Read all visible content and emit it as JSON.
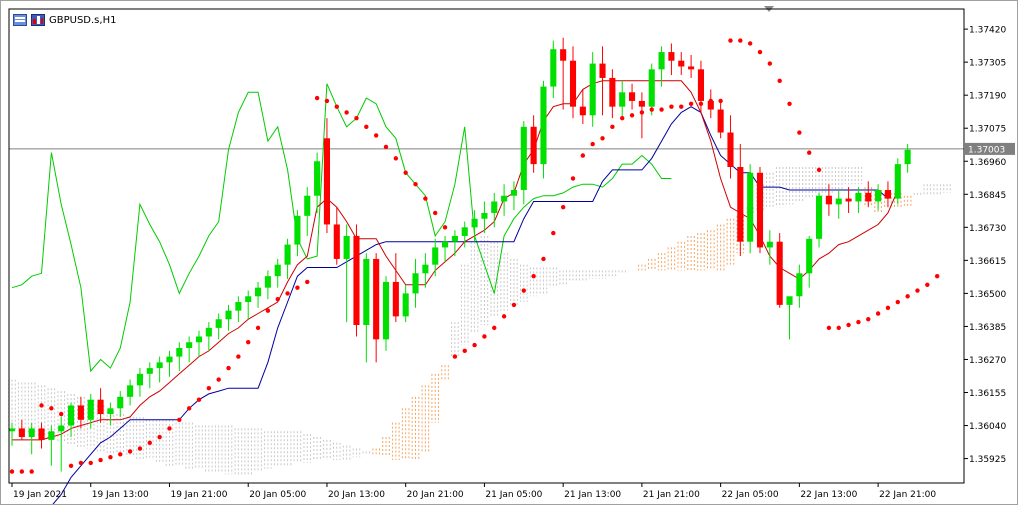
{
  "window": {
    "title": "GBPUSD.s,H1"
  },
  "colors": {
    "background": "#ffffff",
    "grid_border": "#000000",
    "bull": "#00e000",
    "bear": "#ff0000",
    "tenkan": "#cc0000",
    "kijun": "#0000a0",
    "chikou": "#00cc00",
    "sar": "#ff0000",
    "cloud_up": "#f4a460",
    "cloud_down": "#c8c8c8",
    "price_line": "#808080",
    "price_label_bg": "#808080"
  },
  "chart_data": {
    "type": "candlestick",
    "symbol": "GBPUSD.s",
    "timeframe": "H1",
    "current_price": "1.37003",
    "y_axis": {
      "ylim": [
        1.3584,
        1.3749
      ],
      "ticks": [
        "1.37420",
        "1.37305",
        "1.37190",
        "1.37075",
        "1.36960",
        "1.36845",
        "1.36730",
        "1.36615",
        "1.36500",
        "1.36385",
        "1.36270",
        "1.36155",
        "1.36040",
        "1.35925"
      ]
    },
    "x_axis": {
      "ticks": [
        "19 Jan 2021",
        "19 Jan 13:00",
        "19 Jan 21:00",
        "20 Jan 05:00",
        "20 Jan 13:00",
        "20 Jan 21:00",
        "21 Jan 05:00",
        "21 Jan 13:00",
        "21 Jan 21:00",
        "22 Jan 05:00",
        "22 Jan 13:00",
        "22 Jan 21:00"
      ],
      "tick_bar_index": [
        0,
        8,
        16,
        24,
        32,
        40,
        48,
        56,
        64,
        72,
        80,
        88
      ]
    },
    "bar_count": 96,
    "candles": [
      [
        1.3602,
        1.3605,
        1.3597,
        1.3603
      ],
      [
        1.3603,
        1.3606,
        1.3599,
        1.36
      ],
      [
        1.36,
        1.3605,
        1.3594,
        1.3603
      ],
      [
        1.3603,
        1.3605,
        1.3596,
        1.3599
      ],
      [
        1.3599,
        1.3604,
        1.359,
        1.3602
      ],
      [
        1.3602,
        1.3607,
        1.3588,
        1.3604
      ],
      [
        1.3604,
        1.3612,
        1.36,
        1.3611
      ],
      [
        1.3611,
        1.3614,
        1.3603,
        1.3606
      ],
      [
        1.3606,
        1.3615,
        1.3603,
        1.3613
      ],
      [
        1.3613,
        1.3617,
        1.3605,
        1.3608
      ],
      [
        1.3608,
        1.3612,
        1.3604,
        1.361
      ],
      [
        1.361,
        1.3616,
        1.3607,
        1.3614
      ],
      [
        1.3614,
        1.362,
        1.3611,
        1.3618
      ],
      [
        1.3618,
        1.3624,
        1.3614,
        1.3622
      ],
      [
        1.3622,
        1.3626,
        1.3617,
        1.3624
      ],
      [
        1.3624,
        1.3628,
        1.3619,
        1.3626
      ],
      [
        1.3626,
        1.363,
        1.3621,
        1.3628
      ],
      [
        1.3628,
        1.3633,
        1.3623,
        1.3631
      ],
      [
        1.3631,
        1.3635,
        1.3626,
        1.3633
      ],
      [
        1.3633,
        1.3637,
        1.3628,
        1.3635
      ],
      [
        1.3635,
        1.364,
        1.363,
        1.3638
      ],
      [
        1.3638,
        1.3643,
        1.3634,
        1.3641
      ],
      [
        1.3641,
        1.3646,
        1.3637,
        1.3644
      ],
      [
        1.3644,
        1.3649,
        1.364,
        1.3647
      ],
      [
        1.3647,
        1.3651,
        1.3641,
        1.3649
      ],
      [
        1.3649,
        1.3654,
        1.3645,
        1.3652
      ],
      [
        1.3652,
        1.3658,
        1.3648,
        1.3656
      ],
      [
        1.3656,
        1.3662,
        1.3652,
        1.366
      ],
      [
        1.366,
        1.3669,
        1.3655,
        1.3667
      ],
      [
        1.3667,
        1.3679,
        1.3663,
        1.3677
      ],
      [
        1.3677,
        1.3687,
        1.367,
        1.3684
      ],
      [
        1.3684,
        1.3699,
        1.3678,
        1.3696
      ],
      [
        1.3704,
        1.3711,
        1.3671,
        1.3674
      ],
      [
        1.3674,
        1.368,
        1.366,
        1.3662
      ],
      [
        1.3662,
        1.3674,
        1.364,
        1.367
      ],
      [
        1.367,
        1.3674,
        1.3635,
        1.3639
      ],
      [
        1.3639,
        1.3664,
        1.3626,
        1.3662
      ],
      [
        1.3662,
        1.3664,
        1.3626,
        1.3634
      ],
      [
        1.3634,
        1.3656,
        1.363,
        1.3654
      ],
      [
        1.3654,
        1.3664,
        1.364,
        1.3642
      ],
      [
        1.3642,
        1.3653,
        1.364,
        1.365
      ],
      [
        1.365,
        1.3662,
        1.3645,
        1.3657
      ],
      [
        1.3657,
        1.3664,
        1.3652,
        1.366
      ],
      [
        1.366,
        1.3669,
        1.3656,
        1.3666
      ],
      [
        1.3666,
        1.367,
        1.3661,
        1.3668
      ],
      [
        1.3668,
        1.3672,
        1.3663,
        1.367
      ],
      [
        1.367,
        1.3675,
        1.3666,
        1.3673
      ],
      [
        1.3673,
        1.3679,
        1.3668,
        1.3676
      ],
      [
        1.3676,
        1.3682,
        1.3671,
        1.3678
      ],
      [
        1.3678,
        1.3685,
        1.3673,
        1.3682
      ],
      [
        1.3682,
        1.3688,
        1.3677,
        1.3684
      ],
      [
        1.3684,
        1.3689,
        1.3679,
        1.3686
      ],
      [
        1.3686,
        1.371,
        1.3681,
        1.3708
      ],
      [
        1.3708,
        1.3712,
        1.3692,
        1.3695
      ],
      [
        1.3695,
        1.3724,
        1.369,
        1.3722
      ],
      [
        1.3722,
        1.3738,
        1.3718,
        1.3735
      ],
      [
        1.3735,
        1.3739,
        1.3714,
        1.3731
      ],
      [
        1.3731,
        1.3736,
        1.3711,
        1.3715
      ],
      [
        1.3715,
        1.3721,
        1.3709,
        1.3712
      ],
      [
        1.3712,
        1.3734,
        1.3708,
        1.373
      ],
      [
        1.373,
        1.3736,
        1.3712,
        1.3725
      ],
      [
        1.3725,
        1.3728,
        1.3711,
        1.3715
      ],
      [
        1.3715,
        1.3724,
        1.3711,
        1.372
      ],
      [
        1.372,
        1.3723,
        1.3714,
        1.3717
      ],
      [
        1.3717,
        1.372,
        1.3704,
        1.3715
      ],
      [
        1.3715,
        1.373,
        1.3712,
        1.3728
      ],
      [
        1.3728,
        1.3736,
        1.3722,
        1.3734
      ],
      [
        1.3734,
        1.3737,
        1.3726,
        1.3731
      ],
      [
        1.3731,
        1.3734,
        1.3726,
        1.3729
      ],
      [
        1.3729,
        1.3733,
        1.3725,
        1.3728
      ],
      [
        1.3728,
        1.3731,
        1.3713,
        1.3717
      ],
      [
        1.3717,
        1.3721,
        1.3711,
        1.3714
      ],
      [
        1.3714,
        1.3717,
        1.3704,
        1.3706
      ],
      [
        1.3706,
        1.3712,
        1.369,
        1.3694
      ],
      [
        1.3694,
        1.3702,
        1.3663,
        1.3668
      ],
      [
        1.3668,
        1.3695,
        1.3664,
        1.3692
      ],
      [
        1.3692,
        1.3694,
        1.3664,
        1.3666
      ],
      [
        1.3666,
        1.3672,
        1.366,
        1.3668
      ],
      [
        1.3668,
        1.3671,
        1.3645,
        1.3646
      ],
      [
        1.3646,
        1.3648,
        1.3634,
        1.3649
      ],
      [
        1.3649,
        1.366,
        1.3645,
        1.3657
      ],
      [
        1.3657,
        1.367,
        1.3652,
        1.3669
      ],
      [
        1.3669,
        1.3685,
        1.3666,
        1.3684
      ],
      [
        1.3684,
        1.3688,
        1.3677,
        1.3681
      ],
      [
        1.3681,
        1.3686,
        1.3676,
        1.3683
      ],
      [
        1.3683,
        1.3687,
        1.3678,
        1.3682
      ],
      [
        1.3682,
        1.3687,
        1.3678,
        1.3685
      ],
      [
        1.3685,
        1.3689,
        1.368,
        1.3682
      ],
      [
        1.3682,
        1.3688,
        1.3679,
        1.3686
      ],
      [
        1.3686,
        1.3689,
        1.368,
        1.3683
      ],
      [
        1.3683,
        1.3697,
        1.3681,
        1.3695
      ],
      [
        1.3695,
        1.3702,
        1.3692,
        1.37
      ],
      null,
      null,
      null,
      null
    ],
    "tenkan_sen": [
      1.3599,
      1.3599,
      1.3599,
      1.3599,
      1.36,
      1.3601,
      1.3603,
      1.3604,
      1.3605,
      1.3606,
      1.3606,
      1.3606,
      1.3607,
      1.3611,
      1.3614,
      1.3616,
      1.3619,
      1.3622,
      1.3625,
      1.3628,
      1.363,
      1.3633,
      1.3636,
      1.3638,
      1.3641,
      1.3643,
      1.3645,
      1.3647,
      1.3654,
      1.366,
      1.3663,
      1.368,
      1.3683,
      1.368,
      1.3675,
      1.3669,
      1.3669,
      1.3669,
      1.3663,
      1.3658,
      1.3653,
      1.3653,
      1.3653,
      1.3658,
      1.3661,
      1.3664,
      1.3668,
      1.367,
      1.3672,
      1.3675,
      1.3683,
      1.3685,
      1.3695,
      1.37,
      1.371,
      1.3715,
      1.3716,
      1.3716,
      1.3721,
      1.3723,
      1.3724,
      1.3724,
      1.3724,
      1.3724,
      1.3724,
      1.3724,
      1.3724,
      1.3724,
      1.3724,
      1.372,
      1.3713,
      1.3703,
      1.369,
      1.368,
      1.3678,
      1.3676,
      1.367,
      1.3663,
      1.3659,
      1.3657,
      1.3655,
      1.3658,
      1.3662,
      1.3664,
      1.3667,
      1.3668,
      1.367,
      1.3672,
      1.3674,
      1.3678,
      1.3686,
      null,
      null,
      null,
      null,
      null
    ],
    "kijun_sen": [
      1.3568,
      1.357,
      1.3572,
      1.3574,
      1.3576,
      1.358,
      1.3586,
      1.359,
      1.3594,
      1.3598,
      1.36,
      1.3603,
      1.3606,
      1.3606,
      1.3606,
      1.3606,
      1.3606,
      1.3606,
      1.361,
      1.3613,
      1.3615,
      1.3616,
      1.3617,
      1.3617,
      1.3617,
      1.3617,
      1.3626,
      1.3638,
      1.3647,
      1.3656,
      1.3659,
      1.3659,
      1.3659,
      1.3659,
      1.3661,
      1.3663,
      1.3665,
      1.3667,
      1.3668,
      1.3668,
      1.3668,
      1.3668,
      1.3668,
      1.3668,
      1.3668,
      1.3668,
      1.3668,
      1.3668,
      1.3668,
      1.3668,
      1.3668,
      1.3668,
      1.3676,
      1.3682,
      1.3682,
      1.3682,
      1.3682,
      1.3682,
      1.3682,
      1.3682,
      1.3689,
      1.3693,
      1.3693,
      1.3693,
      1.3693,
      1.3697,
      1.3703,
      1.3709,
      1.3713,
      1.3715,
      1.3713,
      1.3705,
      1.3698,
      1.3695,
      1.3692,
      1.3692,
      1.3687,
      1.3687,
      1.3687,
      1.3686,
      1.3686,
      1.3686,
      1.3686,
      1.3686,
      1.3686,
      1.3686,
      1.3686,
      1.3686,
      1.3686,
      1.3683,
      null,
      null,
      null,
      null,
      null,
      null
    ],
    "chikou_span": [
      1.3652,
      1.3653,
      1.3656,
      1.3657,
      1.3699,
      1.3681,
      1.3667,
      1.3652,
      1.3623,
      1.3627,
      1.3624,
      1.3631,
      1.3647,
      1.3681,
      1.3674,
      1.3668,
      1.366,
      1.365,
      1.3657,
      1.3663,
      1.367,
      1.3675,
      1.37,
      1.3713,
      1.372,
      1.372,
      1.3703,
      1.3708,
      1.3693,
      1.3669,
      1.3662,
      1.3663,
      1.3723,
      1.3715,
      1.3708,
      1.3711,
      1.3718,
      1.3716,
      1.3708,
      1.3704,
      1.3692,
      1.3688,
      1.3684,
      1.367,
      1.3675,
      1.3688,
      1.3708,
      1.367,
      1.366,
      1.365,
      1.367,
      1.3676,
      1.368,
      1.3683,
      1.3684,
      1.3684,
      1.3685,
      1.3687,
      1.3688,
      1.3688,
      1.3687,
      1.369,
      1.3695,
      1.3695,
      1.3698,
      1.3695,
      1.369,
      1.369,
      null,
      null,
      null,
      null,
      null,
      null,
      null,
      null,
      null,
      null,
      null,
      null,
      null,
      null,
      null,
      null,
      null,
      null,
      null,
      null,
      null,
      null,
      null,
      null,
      null,
      null,
      null,
      null
    ],
    "senkou_span_a": [
      1.3602,
      1.3602,
      1.3601,
      1.36,
      1.3599,
      1.3598,
      1.3597,
      1.3596,
      1.3596,
      1.3595,
      1.3594,
      1.3594,
      1.3593,
      1.3592,
      1.3592,
      1.3591,
      1.359,
      1.359,
      1.3589,
      1.3589,
      1.3588,
      1.3588,
      1.3587,
      1.3587,
      1.3587,
      1.3588,
      1.3589,
      1.359,
      1.359,
      1.3591,
      1.3591,
      1.3592,
      1.3592,
      1.3592,
      1.3592,
      1.3593,
      1.3594,
      1.3596,
      1.36,
      1.3605,
      1.361,
      1.3614,
      1.3618,
      1.3622,
      1.3625,
      1.3628,
      1.3632,
      1.3636,
      1.3639,
      1.3642,
      1.3644,
      1.3646,
      1.3647,
      1.3649,
      1.365,
      1.3652,
      1.3653,
      1.3654,
      1.3654,
      1.3655,
      1.3655,
      1.3656,
      1.3657,
      1.3658,
      1.366,
      1.3662,
      1.3664,
      1.3666,
      1.3668,
      1.367,
      1.3671,
      1.3672,
      1.3674,
      1.3676,
      1.3677,
      1.3678,
      1.3679,
      1.368,
      1.368,
      1.3681,
      1.3682,
      1.3683,
      1.3684,
      1.3685,
      1.3686,
      1.3688,
      1.3688,
      1.3687,
      1.3686,
      1.3685,
      1.3685,
      1.3684,
      1.3684,
      1.3684,
      1.3684,
      1.3685
    ],
    "senkou_span_b": [
      1.362,
      1.3619,
      1.3619,
      1.3618,
      1.3617,
      1.3616,
      1.3615,
      1.3614,
      1.3613,
      1.3611,
      1.3609,
      1.3608,
      1.3607,
      1.3607,
      1.3606,
      1.3606,
      1.3606,
      1.3605,
      1.3605,
      1.3604,
      1.3604,
      1.3604,
      1.3604,
      1.3603,
      1.3603,
      1.3603,
      1.3602,
      1.3602,
      1.3602,
      1.3602,
      1.3601,
      1.36,
      1.3599,
      1.3598,
      1.3597,
      1.3596,
      1.3595,
      1.3594,
      1.3593,
      1.3592,
      1.3592,
      1.3592,
      1.3595,
      1.3605,
      1.362,
      1.364,
      1.366,
      1.3668,
      1.367,
      1.3668,
      1.3664,
      1.3662,
      1.366,
      1.3659,
      1.3659,
      1.3659,
      1.3658,
      1.3658,
      1.3658,
      1.3658,
      1.3658,
      1.3658,
      1.3658,
      1.3658,
      1.3658,
      1.3658,
      1.3658,
      1.3658,
      1.3658,
      1.3658,
      1.3658,
      1.3658,
      1.3658,
      1.366,
      1.3664,
      1.368,
      1.3688,
      1.3692,
      1.3694,
      1.3694,
      1.3694,
      1.3694,
      1.3694,
      1.3694,
      1.3694,
      1.3694,
      1.3694,
      1.368,
      1.3678,
      1.368,
      1.368,
      1.368,
      1.3685,
      1.3688,
      1.3688,
      1.3688
    ],
    "parabolic_sar": [
      1.3588,
      1.3588,
      1.3588,
      1.3611,
      1.361,
      1.3608,
      1.359,
      1.3591,
      1.3591,
      1.3592,
      1.3593,
      1.3594,
      1.3595,
      1.3596,
      1.3598,
      1.36,
      1.3603,
      1.3606,
      1.361,
      1.3613,
      1.3617,
      1.362,
      1.3624,
      1.3628,
      1.3633,
      1.3638,
      1.3644,
      1.3648,
      1.365,
      1.3652,
      1.3654,
      1.3718,
      1.3717,
      1.3715,
      1.3713,
      1.3711,
      1.3708,
      1.3705,
      1.3701,
      1.3697,
      1.3692,
      1.3688,
      1.3683,
      1.3678,
      1.3673,
      1.3628,
      1.363,
      1.3632,
      1.3635,
      1.3638,
      1.3642,
      1.3646,
      1.3651,
      1.3656,
      1.3662,
      1.3671,
      1.368,
      1.369,
      1.3698,
      1.3702,
      1.3704,
      1.3708,
      1.3711,
      1.3712,
      1.3713,
      1.3714,
      1.3714,
      1.3715,
      1.3715,
      1.3716,
      1.3716,
      1.3717,
      1.3717,
      1.3738,
      1.3738,
      1.3737,
      1.3734,
      1.373,
      1.3724,
      1.3716,
      1.3706,
      1.3699,
      1.3693,
      1.3638,
      1.3638,
      1.3639,
      1.364,
      1.3641,
      1.3643,
      1.3645,
      1.3647,
      1.3649,
      1.3651,
      1.3653,
      1.3656,
      null
    ]
  }
}
